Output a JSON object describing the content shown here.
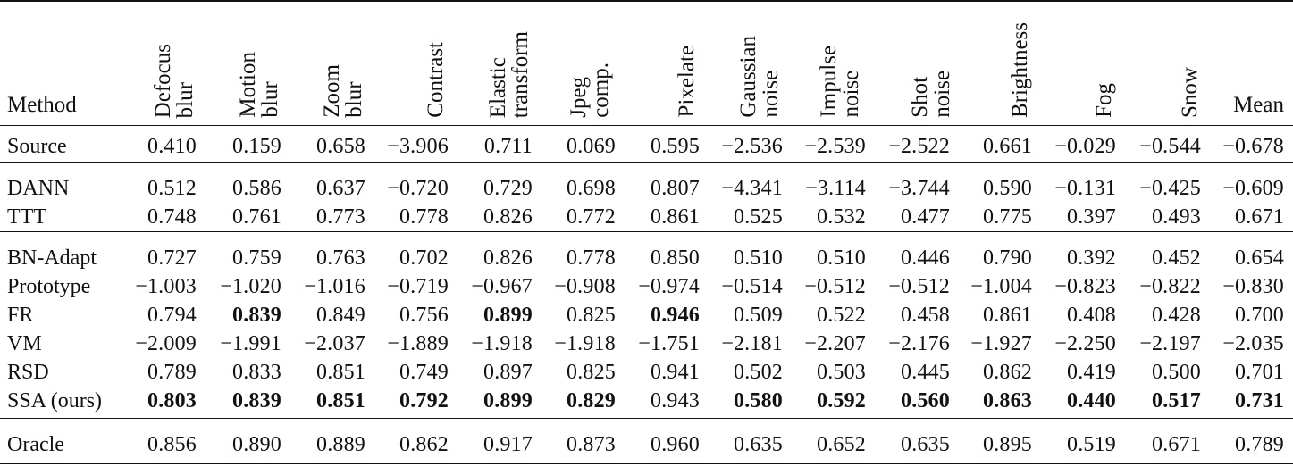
{
  "table": {
    "method_header": "Method",
    "columns": [
      [
        "Defocus",
        "blur"
      ],
      [
        "Motion",
        "blur"
      ],
      [
        "Zoom",
        "blur"
      ],
      [
        "Contrast"
      ],
      [
        "Elastic",
        "transform"
      ],
      [
        "Jpeg",
        "comp."
      ],
      [
        "Pixelate"
      ],
      [
        "Gaussian",
        "noise"
      ],
      [
        "Impulse",
        "noise"
      ],
      [
        "Shot",
        "noise"
      ],
      [
        "Brightness"
      ],
      [
        "Fog"
      ],
      [
        "Snow"
      ],
      [
        "Mean"
      ]
    ],
    "groups": [
      [
        {
          "method": "Source",
          "values": [
            "0.410",
            "0.159",
            "0.658",
            "−3.906",
            "0.711",
            "0.069",
            "0.595",
            "−2.536",
            "−2.539",
            "−2.522",
            "0.661",
            "−0.029",
            "−0.544",
            "−0.678"
          ],
          "bold": []
        }
      ],
      [
        {
          "method": "DANN",
          "values": [
            "0.512",
            "0.586",
            "0.637",
            "−0.720",
            "0.729",
            "0.698",
            "0.807",
            "−4.341",
            "−3.114",
            "−3.744",
            "0.590",
            "−0.131",
            "−0.425",
            "−0.609"
          ],
          "bold": []
        },
        {
          "method": "TTT",
          "values": [
            "0.748",
            "0.761",
            "0.773",
            "0.778",
            "0.826",
            "0.772",
            "0.861",
            "0.525",
            "0.532",
            "0.477",
            "0.775",
            "0.397",
            "0.493",
            "0.671"
          ],
          "bold": []
        }
      ],
      [
        {
          "method": "BN-Adapt",
          "values": [
            "0.727",
            "0.759",
            "0.763",
            "0.702",
            "0.826",
            "0.778",
            "0.850",
            "0.510",
            "0.510",
            "0.446",
            "0.790",
            "0.392",
            "0.452",
            "0.654"
          ],
          "bold": []
        },
        {
          "method": "Prototype",
          "values": [
            "−1.003",
            "−1.020",
            "−1.016",
            "−0.719",
            "−0.967",
            "−0.908",
            "−0.974",
            "−0.514",
            "−0.512",
            "−0.512",
            "−1.004",
            "−0.823",
            "−0.822",
            "−0.830"
          ],
          "bold": []
        },
        {
          "method": "FR",
          "values": [
            "0.794",
            "0.839",
            "0.849",
            "0.756",
            "0.899",
            "0.825",
            "0.946",
            "0.509",
            "0.522",
            "0.458",
            "0.861",
            "0.408",
            "0.428",
            "0.700"
          ],
          "bold": [
            1,
            4,
            6
          ]
        },
        {
          "method": "VM",
          "values": [
            "−2.009",
            "−1.991",
            "−2.037",
            "−1.889",
            "−1.918",
            "−1.918",
            "−1.751",
            "−2.181",
            "−2.207",
            "−2.176",
            "−1.927",
            "−2.250",
            "−2.197",
            "−2.035"
          ],
          "bold": []
        },
        {
          "method": "RSD",
          "values": [
            "0.789",
            "0.833",
            "0.851",
            "0.749",
            "0.897",
            "0.825",
            "0.941",
            "0.502",
            "0.503",
            "0.445",
            "0.862",
            "0.419",
            "0.500",
            "0.701"
          ],
          "bold": []
        },
        {
          "method": "SSA (ours)",
          "values": [
            "0.803",
            "0.839",
            "0.851",
            "0.792",
            "0.899",
            "0.829",
            "0.943",
            "0.580",
            "0.592",
            "0.560",
            "0.863",
            "0.440",
            "0.517",
            "0.731"
          ],
          "bold": [
            0,
            1,
            2,
            3,
            4,
            5,
            7,
            8,
            9,
            10,
            11,
            12,
            13
          ]
        }
      ],
      [
        {
          "method": "Oracle",
          "values": [
            "0.856",
            "0.890",
            "0.889",
            "0.862",
            "0.917",
            "0.873",
            "0.960",
            "0.635",
            "0.652",
            "0.635",
            "0.895",
            "0.519",
            "0.671",
            "0.789"
          ],
          "bold": []
        }
      ]
    ]
  }
}
